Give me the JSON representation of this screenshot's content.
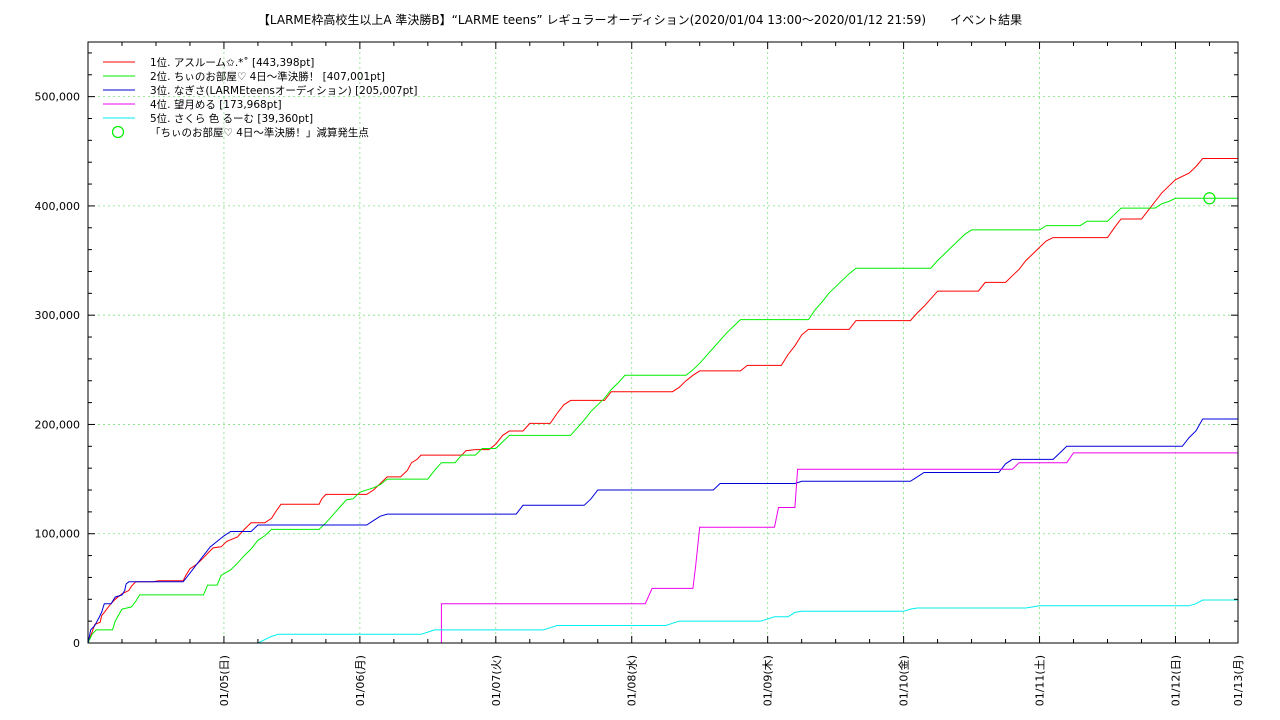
{
  "chart_data": {
    "type": "line",
    "title": "【LARME枠高校生以上A 準決勝B】“LARME teens” レギュラーオーディション(2020/01/04 13:00〜2020/01/12 21:59)　　イベント結果",
    "xlabel": "",
    "ylabel": "",
    "xlim_days": [
      0.0,
      8.46
    ],
    "ylim": [
      0,
      550000
    ],
    "grid": true,
    "legend_position": "top-left",
    "x_ticks": [
      {
        "label": "01/05(日)",
        "day": 1
      },
      {
        "label": "01/06(月)",
        "day": 2
      },
      {
        "label": "01/07(火)",
        "day": 3
      },
      {
        "label": "01/08(水)",
        "day": 4
      },
      {
        "label": "01/09(木)",
        "day": 5
      },
      {
        "label": "01/10(金)",
        "day": 6
      },
      {
        "label": "01/11(土)",
        "day": 7
      },
      {
        "label": "01/12(日)",
        "day": 8
      },
      {
        "label": "01/13(月)",
        "day": 9
      }
    ],
    "y_ticks": [
      {
        "label": "0",
        "value": 0
      },
      {
        "label": "100,000",
        "value": 100000
      },
      {
        "label": "200,000",
        "value": 200000
      },
      {
        "label": "300,000",
        "value": 300000
      },
      {
        "label": "400,000",
        "value": 400000
      },
      {
        "label": "500,000",
        "value": 500000
      }
    ],
    "series": [
      {
        "name": "1位. アスルーム✩.*˚ [443,398pt]",
        "color": "#ff0000",
        "points": [
          [
            0,
            0
          ],
          [
            0.03,
            10000
          ],
          [
            0.05,
            17000
          ],
          [
            0.09,
            19000
          ],
          [
            0.1,
            25000
          ],
          [
            0.12,
            28000
          ],
          [
            0.15,
            33000
          ],
          [
            0.17,
            36000
          ],
          [
            0.2,
            40000
          ],
          [
            0.25,
            45000
          ],
          [
            0.3,
            48000
          ],
          [
            0.32,
            52000
          ],
          [
            0.35,
            56000
          ],
          [
            0.48,
            56000
          ],
          [
            0.52,
            57000
          ],
          [
            0.7,
            57000
          ],
          [
            0.72,
            62000
          ],
          [
            0.75,
            68000
          ],
          [
            0.8,
            72000
          ],
          [
            0.85,
            78000
          ],
          [
            0.88,
            82000
          ],
          [
            0.92,
            87000
          ],
          [
            0.98,
            88000
          ],
          [
            1.02,
            93000
          ],
          [
            1.1,
            97000
          ],
          [
            1.15,
            104000
          ],
          [
            1.2,
            110000
          ],
          [
            1.3,
            110000
          ],
          [
            1.35,
            114000
          ],
          [
            1.38,
            120000
          ],
          [
            1.42,
            127000
          ],
          [
            1.7,
            127000
          ],
          [
            1.72,
            132000
          ],
          [
            1.75,
            136000
          ],
          [
            2.05,
            136000
          ],
          [
            2.1,
            140000
          ],
          [
            2.15,
            146000
          ],
          [
            2.2,
            152000
          ],
          [
            2.3,
            152000
          ],
          [
            2.35,
            158000
          ],
          [
            2.38,
            165000
          ],
          [
            2.42,
            168000
          ],
          [
            2.45,
            172000
          ],
          [
            2.75,
            172000
          ],
          [
            2.78,
            176000
          ],
          [
            2.85,
            177000
          ],
          [
            2.95,
            177000
          ],
          [
            3.0,
            182000
          ],
          [
            3.05,
            190000
          ],
          [
            3.1,
            194000
          ],
          [
            3.2,
            194000
          ],
          [
            3.25,
            201000
          ],
          [
            3.4,
            201000
          ],
          [
            3.45,
            210000
          ],
          [
            3.5,
            218000
          ],
          [
            3.55,
            222000
          ],
          [
            3.8,
            222000
          ],
          [
            3.85,
            230000
          ],
          [
            4.3,
            230000
          ],
          [
            4.35,
            234000
          ],
          [
            4.4,
            240000
          ],
          [
            4.45,
            245000
          ],
          [
            4.5,
            249000
          ],
          [
            4.8,
            249000
          ],
          [
            4.85,
            254000
          ],
          [
            5.1,
            254000
          ],
          [
            5.15,
            264000
          ],
          [
            5.2,
            272000
          ],
          [
            5.25,
            282000
          ],
          [
            5.3,
            287000
          ],
          [
            5.6,
            287000
          ],
          [
            5.65,
            295000
          ],
          [
            6.05,
            295000
          ],
          [
            6.1,
            302000
          ],
          [
            6.15,
            308000
          ],
          [
            6.2,
            315000
          ],
          [
            6.25,
            322000
          ],
          [
            6.55,
            322000
          ],
          [
            6.6,
            330000
          ],
          [
            6.75,
            330000
          ],
          [
            6.8,
            336000
          ],
          [
            6.85,
            342000
          ],
          [
            6.9,
            350000
          ],
          [
            6.95,
            356000
          ],
          [
            7.0,
            362000
          ],
          [
            7.05,
            368000
          ],
          [
            7.1,
            371000
          ],
          [
            7.5,
            371000
          ],
          [
            7.55,
            380000
          ],
          [
            7.6,
            388000
          ],
          [
            7.75,
            388000
          ],
          [
            7.8,
            396000
          ],
          [
            7.85,
            404000
          ],
          [
            7.9,
            412000
          ],
          [
            7.95,
            418000
          ],
          [
            8.0,
            424000
          ],
          [
            8.1,
            430000
          ],
          [
            8.15,
            436000
          ],
          [
            8.2,
            443398
          ],
          [
            8.46,
            443398
          ]
        ]
      },
      {
        "name": "2位. ちぃのお部屋♡ 4日〜準決勝！ [407,001pt]",
        "color": "#00ee00",
        "points": [
          [
            0,
            0
          ],
          [
            0.03,
            8000
          ],
          [
            0.06,
            12000
          ],
          [
            0.18,
            12000
          ],
          [
            0.2,
            20000
          ],
          [
            0.25,
            31000
          ],
          [
            0.32,
            33000
          ],
          [
            0.35,
            38000
          ],
          [
            0.38,
            44000
          ],
          [
            0.85,
            44000
          ],
          [
            0.88,
            53000
          ],
          [
            0.95,
            53000
          ],
          [
            0.98,
            62000
          ],
          [
            1.05,
            67000
          ],
          [
            1.1,
            73000
          ],
          [
            1.15,
            80000
          ],
          [
            1.2,
            86000
          ],
          [
            1.25,
            94000
          ],
          [
            1.3,
            98000
          ],
          [
            1.35,
            104000
          ],
          [
            1.7,
            104000
          ],
          [
            1.75,
            110000
          ],
          [
            1.8,
            117000
          ],
          [
            1.85,
            124000
          ],
          [
            1.9,
            131000
          ],
          [
            1.95,
            132000
          ],
          [
            2.0,
            138000
          ],
          [
            2.1,
            142000
          ],
          [
            2.15,
            145000
          ],
          [
            2.2,
            150000
          ],
          [
            2.5,
            150000
          ],
          [
            2.55,
            158000
          ],
          [
            2.6,
            165000
          ],
          [
            2.7,
            165000
          ],
          [
            2.75,
            172000
          ],
          [
            2.85,
            172000
          ],
          [
            2.9,
            178000
          ],
          [
            3.0,
            178000
          ],
          [
            3.05,
            184000
          ],
          [
            3.1,
            190000
          ],
          [
            3.55,
            190000
          ],
          [
            3.6,
            197000
          ],
          [
            3.65,
            204000
          ],
          [
            3.7,
            212000
          ],
          [
            3.75,
            218000
          ],
          [
            3.8,
            224000
          ],
          [
            3.85,
            232000
          ],
          [
            3.9,
            238000
          ],
          [
            3.95,
            245000
          ],
          [
            4.4,
            245000
          ],
          [
            4.45,
            250000
          ],
          [
            4.5,
            256000
          ],
          [
            4.55,
            263000
          ],
          [
            4.6,
            270000
          ],
          [
            4.65,
            277000
          ],
          [
            4.7,
            284000
          ],
          [
            4.75,
            290000
          ],
          [
            4.8,
            296000
          ],
          [
            5.3,
            296000
          ],
          [
            5.35,
            305000
          ],
          [
            5.4,
            312000
          ],
          [
            5.45,
            320000
          ],
          [
            5.5,
            326000
          ],
          [
            5.55,
            332000
          ],
          [
            5.6,
            338000
          ],
          [
            5.65,
            343000
          ],
          [
            6.2,
            343000
          ],
          [
            6.25,
            350000
          ],
          [
            6.3,
            356000
          ],
          [
            6.35,
            362000
          ],
          [
            6.4,
            368000
          ],
          [
            6.45,
            374000
          ],
          [
            6.5,
            378000
          ],
          [
            7.0,
            378000
          ],
          [
            7.05,
            382000
          ],
          [
            7.3,
            382000
          ],
          [
            7.35,
            386000
          ],
          [
            7.5,
            386000
          ],
          [
            7.55,
            392000
          ],
          [
            7.6,
            398000
          ],
          [
            7.85,
            398000
          ],
          [
            7.9,
            402000
          ],
          [
            7.95,
            404000
          ],
          [
            8.0,
            407001
          ],
          [
            8.46,
            407001
          ]
        ]
      },
      {
        "name": "3位. なぎさ(LARMEteensオーディション) [205,007pt]",
        "color": "#0000dd",
        "points": [
          [
            0,
            0
          ],
          [
            0.02,
            12000
          ],
          [
            0.05,
            16000
          ],
          [
            0.08,
            23000
          ],
          [
            0.1,
            28000
          ],
          [
            0.12,
            36000
          ],
          [
            0.17,
            36000
          ],
          [
            0.2,
            42000
          ],
          [
            0.25,
            44000
          ],
          [
            0.27,
            48000
          ],
          [
            0.28,
            54000
          ],
          [
            0.3,
            56000
          ],
          [
            0.7,
            56000
          ],
          [
            0.75,
            64000
          ],
          [
            0.8,
            72000
          ],
          [
            0.85,
            80000
          ],
          [
            0.9,
            88000
          ],
          [
            0.95,
            93000
          ],
          [
            1.0,
            98000
          ],
          [
            1.05,
            102000
          ],
          [
            1.2,
            102000
          ],
          [
            1.25,
            108000
          ],
          [
            2.05,
            108000
          ],
          [
            2.1,
            112000
          ],
          [
            2.15,
            116000
          ],
          [
            2.2,
            118000
          ],
          [
            3.15,
            118000
          ],
          [
            3.2,
            126000
          ],
          [
            3.65,
            126000
          ],
          [
            3.7,
            132000
          ],
          [
            3.75,
            140000
          ],
          [
            4.6,
            140000
          ],
          [
            4.65,
            146000
          ],
          [
            5.2,
            146000
          ],
          [
            5.25,
            148000
          ],
          [
            6.05,
            148000
          ],
          [
            6.1,
            152000
          ],
          [
            6.15,
            156000
          ],
          [
            6.7,
            156000
          ],
          [
            6.75,
            164000
          ],
          [
            6.8,
            168000
          ],
          [
            7.1,
            168000
          ],
          [
            7.15,
            174000
          ],
          [
            7.2,
            180000
          ],
          [
            8.05,
            180000
          ],
          [
            8.1,
            188000
          ],
          [
            8.15,
            194000
          ],
          [
            8.2,
            205007
          ],
          [
            8.46,
            205007
          ]
        ]
      },
      {
        "name": "4位. 望月める [173,968pt]",
        "color": "#ee00ee",
        "points": [
          [
            0,
            0
          ],
          [
            2.6,
            0
          ],
          [
            2.6,
            36000
          ],
          [
            4.1,
            36000
          ],
          [
            4.15,
            50000
          ],
          [
            4.45,
            50000
          ],
          [
            4.47,
            70000
          ],
          [
            4.5,
            106000
          ],
          [
            5.05,
            106000
          ],
          [
            5.08,
            124000
          ],
          [
            5.2,
            124000
          ],
          [
            5.22,
            159000
          ],
          [
            6.8,
            159000
          ],
          [
            6.85,
            165000
          ],
          [
            7.2,
            165000
          ],
          [
            7.25,
            173968
          ],
          [
            8.46,
            173968
          ]
        ]
      },
      {
        "name": "5位. さくら 色 るーむ [39,360pt]",
        "color": "#00eeee",
        "points": [
          [
            0,
            0
          ],
          [
            1.25,
            0
          ],
          [
            1.3,
            3000
          ],
          [
            1.35,
            6000
          ],
          [
            1.4,
            8000
          ],
          [
            2.45,
            8000
          ],
          [
            2.5,
            10000
          ],
          [
            2.55,
            12000
          ],
          [
            3.35,
            12000
          ],
          [
            3.4,
            14000
          ],
          [
            3.45,
            16000
          ],
          [
            4.25,
            16000
          ],
          [
            4.3,
            18000
          ],
          [
            4.35,
            20000
          ],
          [
            4.95,
            20000
          ],
          [
            5.0,
            22000
          ],
          [
            5.05,
            24000
          ],
          [
            5.15,
            24000
          ],
          [
            5.2,
            28000
          ],
          [
            5.25,
            29000
          ],
          [
            6.0,
            29000
          ],
          [
            6.05,
            31000
          ],
          [
            6.1,
            32000
          ],
          [
            6.9,
            32000
          ],
          [
            6.95,
            33000
          ],
          [
            7.0,
            34000
          ],
          [
            8.1,
            34000
          ],
          [
            8.15,
            36000
          ],
          [
            8.2,
            39360
          ],
          [
            8.46,
            39360
          ]
        ]
      }
    ],
    "markers": [
      {
        "name": "「ちぃのお部屋♡ 4日〜準決勝！」減算発生点",
        "color": "#00ee00",
        "x": 8.25,
        "y": 407001
      }
    ]
  }
}
